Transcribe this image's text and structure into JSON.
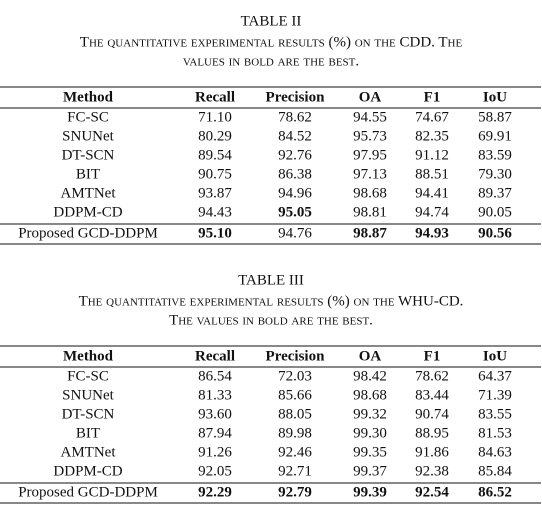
{
  "tables": [
    {
      "title": "TABLE II",
      "caption_lines": [
        "The quantitative experimental results (%) on the CDD. The",
        "values in bold are the best."
      ],
      "header": [
        "Method",
        "Recall",
        "Precision",
        "OA",
        "F1",
        "IoU"
      ],
      "rows": [
        [
          "FC-SC",
          "71.10",
          "78.62",
          "94.55",
          "74.67",
          "58.87"
        ],
        [
          "SNUNet",
          "80.29",
          "84.52",
          "95.73",
          "82.35",
          "69.91"
        ],
        [
          "DT-SCN",
          "89.54",
          "92.76",
          "97.95",
          "91.12",
          "83.59"
        ],
        [
          "BIT",
          "90.75",
          "86.38",
          "97.13",
          "88.51",
          "79.30"
        ],
        [
          "AMTNet",
          "93.87",
          "94.96",
          "98.68",
          "94.41",
          "89.37"
        ],
        [
          "DDPM-CD",
          "94.43",
          "95.05",
          "98.81",
          "94.74",
          "90.05"
        ],
        [
          "Proposed GCD-DDPM",
          "95.10",
          "94.76",
          "98.87",
          "94.93",
          "90.56"
        ]
      ],
      "bold_cells": [
        [
          5,
          2
        ],
        [
          6,
          1
        ],
        [
          6,
          3
        ],
        [
          6,
          4
        ],
        [
          6,
          5
        ]
      ]
    },
    {
      "title": "TABLE III",
      "caption_lines": [
        "The quantitative experimental results (%) on the WHU-CD.",
        "The values in bold are the best."
      ],
      "header": [
        "Method",
        "Recall",
        "Precision",
        "OA",
        "F1",
        "IoU"
      ],
      "rows": [
        [
          "FC-SC",
          "86.54",
          "72.03",
          "98.42",
          "78.62",
          "64.37"
        ],
        [
          "SNUNet",
          "81.33",
          "85.66",
          "98.68",
          "83.44",
          "71.39"
        ],
        [
          "DT-SCN",
          "93.60",
          "88.05",
          "99.32",
          "90.74",
          "83.55"
        ],
        [
          "BIT",
          "87.94",
          "89.98",
          "99.30",
          "88.95",
          "81.53"
        ],
        [
          "AMTNet",
          "91.26",
          "92.46",
          "99.35",
          "91.86",
          "84.63"
        ],
        [
          "DDPM-CD",
          "92.05",
          "92.71",
          "99.37",
          "92.38",
          "85.84"
        ],
        [
          "Proposed GCD-DDPM",
          "92.29",
          "92.79",
          "99.39",
          "92.54",
          "86.52"
        ]
      ],
      "bold_cells": [
        [
          6,
          1
        ],
        [
          6,
          2
        ],
        [
          6,
          3
        ],
        [
          6,
          4
        ],
        [
          6,
          5
        ]
      ]
    }
  ]
}
